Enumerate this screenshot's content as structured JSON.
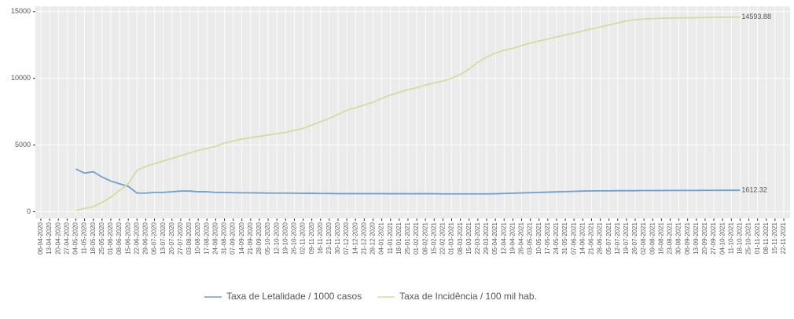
{
  "chart_data": {
    "type": "line",
    "categories": [
      "06-04-2020",
      "13-04-2020",
      "20-04-2020",
      "27-04-2020",
      "04-05-2020",
      "11-05-2020",
      "18-05-2020",
      "25-05-2020",
      "01-06-2020",
      "08-06-2020",
      "15-06-2020",
      "22-06-2020",
      "29-06-2020",
      "06-07-2020",
      "13-07-2020",
      "20-07-2020",
      "27-07-2020",
      "03-08-2020",
      "10-08-2020",
      "17-08-2020",
      "24-08-2020",
      "31-08-2020",
      "07-09-2020",
      "14-09-2020",
      "21-09-2020",
      "28-09-2020",
      "05-10-2020",
      "12-10-2020",
      "19-10-2020",
      "26-10-2020",
      "02-11-2020",
      "09-11-2020",
      "16-11-2020",
      "23-11-2020",
      "30-11-2020",
      "07-12-2020",
      "14-12-2020",
      "21-12-2020",
      "28-12-2020",
      "04-01-2021",
      "11-01-2021",
      "18-01-2021",
      "25-01-2021",
      "01-02-2021",
      "08-02-2021",
      "15-02-2021",
      "22-02-2021",
      "01-03-2021",
      "08-03-2021",
      "15-03-2021",
      "22-03-2021",
      "29-03-2021",
      "05-04-2021",
      "12-04-2021",
      "19-04-2021",
      "26-04-2021",
      "03-05-2021",
      "10-05-2021",
      "17-05-2021",
      "24-05-2021",
      "31-05-2021",
      "07-06-2021",
      "14-06-2021",
      "21-06-2021",
      "28-06-2021",
      "05-07-2021",
      "12-07-2021",
      "19-07-2021",
      "26-07-2021",
      "02-08-2021",
      "09-08-2021",
      "16-08-2021",
      "23-08-2021",
      "30-08-2021",
      "06-09-2021",
      "13-09-2021",
      "20-09-2021",
      "27-09-2021",
      "04-10-2021",
      "11-10-2021",
      "18-10-2021",
      "25-10-2021",
      "01-11-2021",
      "08-11-2021",
      "15-11-2021",
      "22-11-2021"
    ],
    "series": [
      {
        "name": "Taxa de Letalidade / 1000 casos",
        "color": "#6f9fcf",
        "values": [
          null,
          null,
          null,
          null,
          3200,
          2900,
          3000,
          2600,
          2300,
          2100,
          1900,
          1400,
          1400,
          1450,
          1450,
          1500,
          1550,
          1550,
          1500,
          1500,
          1450,
          1450,
          1430,
          1420,
          1420,
          1410,
          1400,
          1400,
          1400,
          1390,
          1380,
          1380,
          1370,
          1370,
          1360,
          1360,
          1360,
          1360,
          1360,
          1360,
          1350,
          1350,
          1350,
          1350,
          1350,
          1350,
          1340,
          1340,
          1340,
          1340,
          1340,
          1340,
          1350,
          1370,
          1390,
          1410,
          1430,
          1450,
          1470,
          1490,
          1510,
          1530,
          1550,
          1560,
          1570,
          1570,
          1580,
          1580,
          1580,
          1590,
          1590,
          1590,
          1600,
          1600,
          1600,
          1600,
          1605,
          1605,
          1610,
          1610,
          1612.32,
          null,
          null,
          null,
          null,
          null
        ]
      },
      {
        "name": "Taxa de Incidência / 100 mil hab.",
        "color": "#d4dc9e",
        "values": [
          null,
          null,
          null,
          null,
          100,
          250,
          400,
          700,
          1100,
          1600,
          2100,
          3100,
          3400,
          3600,
          3800,
          4000,
          4200,
          4400,
          4600,
          4750,
          4900,
          5150,
          5300,
          5450,
          5550,
          5650,
          5750,
          5850,
          5950,
          6100,
          6250,
          6500,
          6750,
          7000,
          7300,
          7600,
          7800,
          8000,
          8200,
          8500,
          8750,
          8950,
          9150,
          9300,
          9500,
          9650,
          9800,
          10000,
          10300,
          10700,
          11200,
          11600,
          11900,
          12100,
          12250,
          12450,
          12650,
          12800,
          12950,
          13100,
          13250,
          13400,
          13550,
          13700,
          13850,
          14000,
          14150,
          14300,
          14400,
          14450,
          14480,
          14500,
          14520,
          14530,
          14540,
          14550,
          14560,
          14570,
          14580,
          14590,
          14593.88,
          null,
          null,
          null,
          null,
          null
        ]
      }
    ],
    "ylim": [
      -500,
      15400
    ],
    "yticks": [
      0,
      5000,
      10000,
      15000
    ],
    "grid": true
  }
}
